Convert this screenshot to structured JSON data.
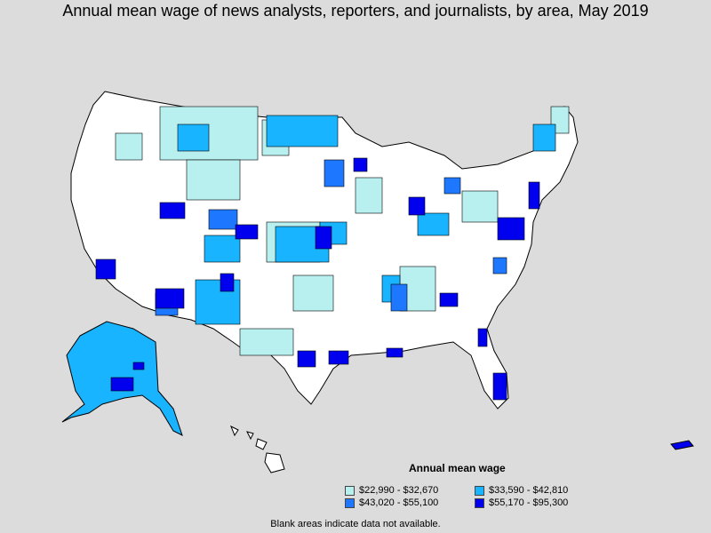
{
  "title": "Annual mean wage of news analysts, reporters, and journalists, by area, May 2019",
  "legend": {
    "title": "Annual mean wage",
    "items": [
      {
        "label": "$22,990 - $32,670",
        "color": "#b8f0f0"
      },
      {
        "label": "$33,590 - $42,810",
        "color": "#19b4ff"
      },
      {
        "label": "$43,020 - $55,100",
        "color": "#1e78ff"
      },
      {
        "label": "$55,170 - $95,300",
        "color": "#0000ee"
      }
    ]
  },
  "note": "Blank areas indicate data not available.",
  "colors": {
    "background": "#dcdcdc",
    "blank": "#ffffff",
    "outline": "#000000"
  }
}
